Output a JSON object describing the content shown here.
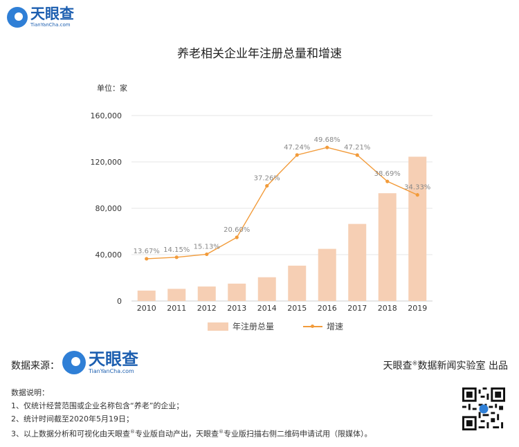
{
  "brand": {
    "name": "天眼查",
    "url": "TianYanCha.com"
  },
  "chart_data": {
    "type": "bar+line",
    "title": "养老相关企业年注册总量和增速",
    "unit_label": "单位：家",
    "categories": [
      "2010",
      "2011",
      "2012",
      "2013",
      "2014",
      "2015",
      "2016",
      "2017",
      "2018",
      "2019"
    ],
    "series": [
      {
        "name": "年注册总量",
        "type": "bar",
        "values": [
          9000,
          10500,
          12500,
          15000,
          20500,
          30500,
          45000,
          66500,
          93000,
          124500
        ]
      },
      {
        "name": "增速",
        "type": "line",
        "values": [
          13.67,
          14.15,
          15.13,
          20.6,
          37.26,
          47.24,
          49.68,
          47.21,
          38.69,
          34.33
        ],
        "labels": [
          "13.67%",
          "14.15%",
          "15.13%",
          "20.60%",
          "37.26%",
          "47.24%",
          "49.68%",
          "47.21%",
          "38.69%",
          "34.33%"
        ]
      }
    ],
    "y_ticks": [
      "0",
      "40,000",
      "80,000",
      "120,000",
      "160,000"
    ],
    "ylim": [
      0,
      160000
    ],
    "y2lim": [
      0,
      60
    ],
    "legend_position": "bottom",
    "colors": {
      "bar": "#f6cfb4",
      "line": "#f29b3a",
      "label": "#888888"
    }
  },
  "source_label": "数据来源：",
  "credit": {
    "main": "天眼查",
    "sup": "®",
    "rest": "数据新闻实验室 出品"
  },
  "notes": {
    "heading": "数据说明：",
    "item1": "1、仅统计经营范围或企业名称包含“养老”的企业；",
    "item2": "2、统计时间截至2020年5月19日；",
    "item3a": "3、以上数据分析和可视化由天眼查",
    "item3sup": "®",
    "item3b": "专业版自动产出，天眼查",
    "item3sup2": "®",
    "item3c": "专业版扫描右侧二维码申请试用（限媒体）。"
  }
}
